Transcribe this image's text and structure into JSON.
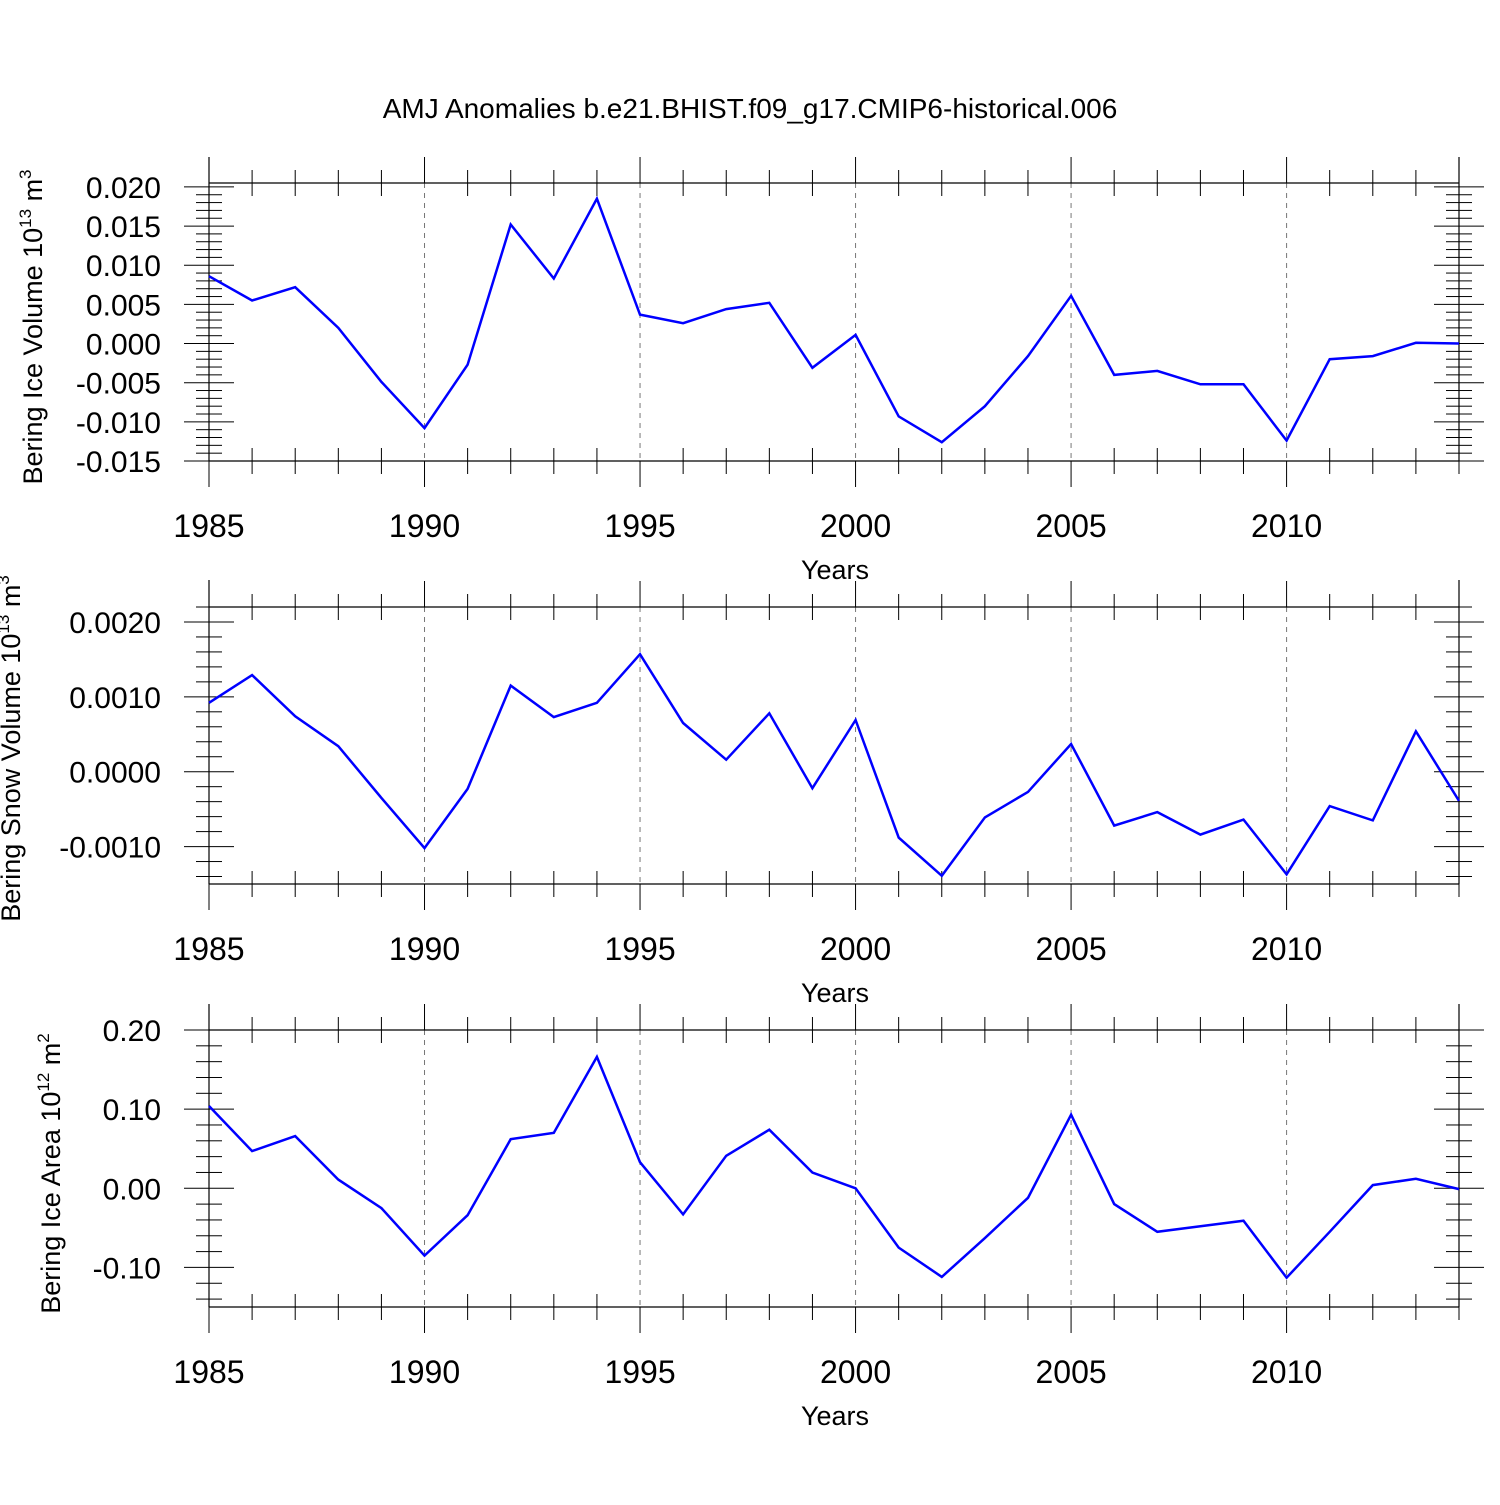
{
  "title": "AMJ Anomalies b.e21.BHIST.f09_g17.CMIP6-historical.006",
  "line_color": "#0000ff",
  "chart_data": [
    {
      "type": "line",
      "name": "ice-volume",
      "ylabel_main": "Bering Ice Volume 10",
      "ylabel_exp": "13",
      "ylabel_unit": " m",
      "ylabel_unit_exp": "3",
      "xlabel": "Years",
      "xlim": [
        1985,
        2014
      ],
      "ylim": [
        -0.015,
        0.0205
      ],
      "x_ticks": [
        1985,
        1990,
        1995,
        2000,
        2005,
        2010
      ],
      "x_tick_labels": [
        "1985",
        "1990",
        "1995",
        "2000",
        "2005",
        "2010"
      ],
      "y_ticks": [
        -0.015,
        -0.01,
        -0.005,
        0.0,
        0.005,
        0.01,
        0.015,
        0.02
      ],
      "y_tick_labels": [
        "-0.015",
        "-0.010",
        "-0.005",
        "0.000",
        "0.005",
        "0.010",
        "0.015",
        "0.020"
      ],
      "y_minor_step": 0.001,
      "x": [
        1985,
        1986,
        1987,
        1988,
        1989,
        1990,
        1991,
        1992,
        1993,
        1994,
        1995,
        1996,
        1997,
        1998,
        1999,
        2000,
        2001,
        2002,
        2003,
        2004,
        2005,
        2006,
        2007,
        2008,
        2009,
        2010,
        2011,
        2012,
        2013,
        2014
      ],
      "values": [
        0.0086,
        0.0055,
        0.0072,
        0.002,
        -0.0049,
        -0.0108,
        -0.0027,
        0.0152,
        0.0083,
        0.0185,
        0.0037,
        0.0026,
        0.0044,
        0.0052,
        -0.0031,
        0.0011,
        -0.0093,
        -0.0126,
        -0.008,
        -0.0016,
        0.0061,
        -0.004,
        -0.0035,
        -0.0052,
        -0.0052,
        -0.0124,
        -0.002,
        -0.0016,
        0.0001,
        0.0
      ]
    },
    {
      "type": "line",
      "name": "snow-volume",
      "ylabel_main": "Bering Snow Volume 10",
      "ylabel_exp": "13",
      "ylabel_unit": " m",
      "ylabel_unit_exp": "3",
      "xlabel": "Years",
      "xlim": [
        1985,
        2014
      ],
      "ylim": [
        -0.0015,
        0.0022
      ],
      "x_ticks": [
        1985,
        1990,
        1995,
        2000,
        2005,
        2010
      ],
      "x_tick_labels": [
        "1985",
        "1990",
        "1995",
        "2000",
        "2005",
        "2010"
      ],
      "y_ticks": [
        -0.001,
        0.0,
        0.001,
        0.002
      ],
      "y_tick_labels": [
        "-0.0010",
        "0.0000",
        "0.0010",
        "0.0020"
      ],
      "y_minor_step": 0.0002,
      "x": [
        1985,
        1986,
        1987,
        1988,
        1989,
        1990,
        1991,
        1992,
        1993,
        1994,
        1995,
        1996,
        1997,
        1998,
        1999,
        2000,
        2001,
        2002,
        2003,
        2004,
        2005,
        2006,
        2007,
        2008,
        2009,
        2010,
        2011,
        2012,
        2013,
        2014
      ],
      "values": [
        0.00092,
        0.00129,
        0.00074,
        0.00034,
        -0.00035,
        -0.00102,
        -0.00023,
        0.00115,
        0.00073,
        0.00092,
        0.00157,
        0.00065,
        0.00016,
        0.00078,
        -0.00022,
        0.00069,
        -0.00088,
        -0.00139,
        -0.00061,
        -0.00027,
        0.00037,
        -0.00072,
        -0.00054,
        -0.00084,
        -0.00064,
        -0.00137,
        -0.00046,
        -0.00065,
        0.00054,
        -0.00039
      ]
    },
    {
      "type": "line",
      "name": "ice-area",
      "ylabel_main": "Bering Ice Area 10",
      "ylabel_exp": "12",
      "ylabel_unit": " m",
      "ylabel_unit_exp": "2",
      "xlabel": "Years",
      "xlim": [
        1985,
        2014
      ],
      "ylim": [
        -0.15,
        0.2
      ],
      "x_ticks": [
        1985,
        1990,
        1995,
        2000,
        2005,
        2010
      ],
      "x_tick_labels": [
        "1985",
        "1990",
        "1995",
        "2000",
        "2005",
        "2010"
      ],
      "y_ticks": [
        -0.1,
        0.0,
        0.1,
        0.2
      ],
      "y_tick_labels": [
        "-0.10",
        "0.00",
        "0.10",
        "0.20"
      ],
      "y_minor_step": 0.02,
      "x": [
        1985,
        1986,
        1987,
        1988,
        1989,
        1990,
        1991,
        1992,
        1993,
        1994,
        1995,
        1996,
        1997,
        1998,
        1999,
        2000,
        2001,
        2002,
        2003,
        2004,
        2005,
        2006,
        2007,
        2008,
        2009,
        2010,
        2011,
        2012,
        2013,
        2014
      ],
      "values": [
        0.104,
        0.047,
        0.066,
        0.011,
        -0.025,
        -0.085,
        -0.034,
        0.062,
        0.07,
        0.166,
        0.033,
        -0.033,
        0.041,
        0.074,
        0.02,
        0.0,
        -0.075,
        -0.112,
        -0.063,
        -0.012,
        0.093,
        -0.02,
        -0.055,
        -0.048,
        -0.041,
        -0.113,
        -0.055,
        0.004,
        0.012,
        -0.001
      ]
    }
  ]
}
